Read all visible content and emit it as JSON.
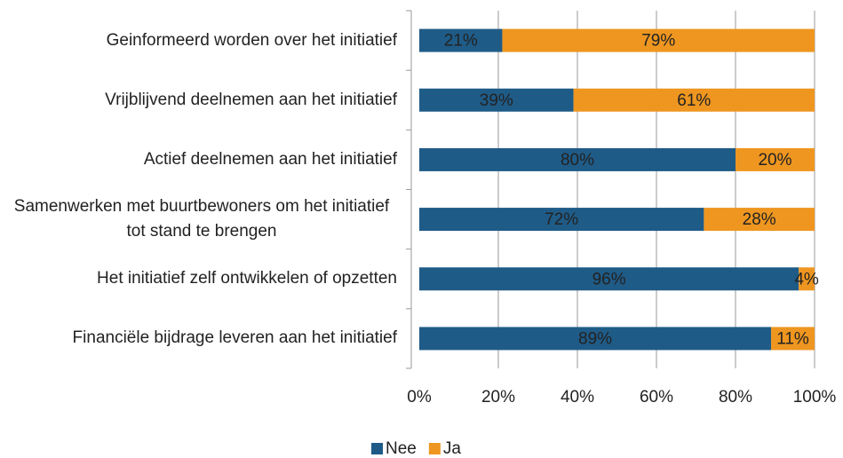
{
  "chart_data": {
    "type": "stacked-bar-horizontal",
    "categories": [
      "Geinformeerd worden over het initiatief",
      "Vrijblijvend deelnemen aan het initiatief",
      "Actief deelnemen aan het initiatief",
      "Samenwerken met buurtbewoners om het initiatief tot stand te brengen",
      "Het initiatief zelf ontwikkelen of opzetten",
      "Financiële bijdrage leveren aan het initiatief"
    ],
    "series": [
      {
        "name": "Nee",
        "color": "#1f5b87",
        "values": [
          21,
          39,
          80,
          72,
          96,
          89
        ],
        "value_labels": [
          "21%",
          "39%",
          "80%",
          "72%",
          "96%",
          "89%"
        ]
      },
      {
        "name": "Ja",
        "color": "#ee9620",
        "values": [
          79,
          61,
          20,
          28,
          4,
          11
        ],
        "value_labels": [
          "79%",
          "61%",
          "20%",
          "28%",
          "4%",
          "11%"
        ]
      }
    ],
    "xlim": [
      0,
      100
    ],
    "xticks": [
      {
        "value": 0,
        "label": "0%"
      },
      {
        "value": 20,
        "label": "20%"
      },
      {
        "value": 40,
        "label": "40%"
      },
      {
        "value": 60,
        "label": "60%"
      },
      {
        "value": 80,
        "label": "80%"
      },
      {
        "value": 100,
        "label": "100%"
      }
    ],
    "grid": true,
    "legend": "bottom"
  }
}
